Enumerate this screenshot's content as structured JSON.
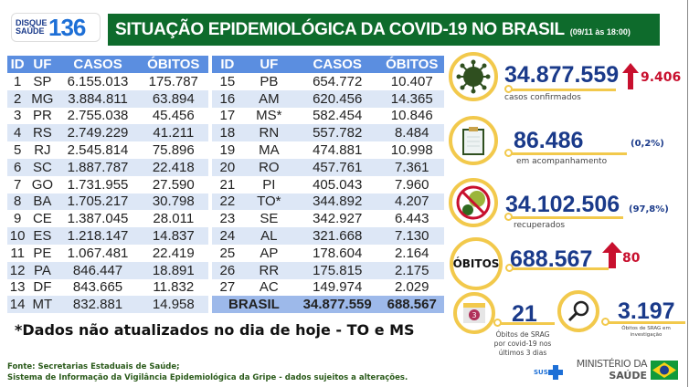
{
  "header": {
    "logo_line1": "DISQUE",
    "logo_line2": "SAÚDE",
    "logo_number": "136",
    "title": "SITUAÇÃO EPIDEMIOLÓGICA DA COVID-19 NO BRASIL",
    "datetime": "(09/11 às 18:00)"
  },
  "table": {
    "columns": [
      "ID",
      "UF",
      "CASOS",
      "ÓBITOS"
    ],
    "left": [
      [
        "1",
        "SP",
        "6.155.013",
        "175.787"
      ],
      [
        "2",
        "MG",
        "3.884.811",
        "63.894"
      ],
      [
        "3",
        "PR",
        "2.755.038",
        "45.456"
      ],
      [
        "4",
        "RS",
        "2.749.229",
        "41.211"
      ],
      [
        "5",
        "RJ",
        "2.545.814",
        "75.896"
      ],
      [
        "6",
        "SC",
        "1.887.787",
        "22.418"
      ],
      [
        "7",
        "GO",
        "1.731.955",
        "27.590"
      ],
      [
        "8",
        "BA",
        "1.705.217",
        "30.798"
      ],
      [
        "9",
        "CE",
        "1.387.045",
        "28.011"
      ],
      [
        "10",
        "ES",
        "1.218.147",
        "14.837"
      ],
      [
        "11",
        "PE",
        "1.067.481",
        "22.419"
      ],
      [
        "12",
        "PA",
        "846.447",
        "18.891"
      ],
      [
        "13",
        "DF",
        "843.665",
        "11.832"
      ],
      [
        "14",
        "MT",
        "832.881",
        "14.958"
      ]
    ],
    "right": [
      [
        "15",
        "PB",
        "654.772",
        "10.407"
      ],
      [
        "16",
        "AM",
        "620.456",
        "14.365"
      ],
      [
        "17",
        "MS*",
        "582.454",
        "10.846"
      ],
      [
        "18",
        "RN",
        "557.782",
        "8.484"
      ],
      [
        "19",
        "MA",
        "474.881",
        "10.998"
      ],
      [
        "20",
        "RO",
        "457.761",
        "7.361"
      ],
      [
        "21",
        "PI",
        "405.043",
        "7.960"
      ],
      [
        "22",
        "TO*",
        "344.892",
        "4.207"
      ],
      [
        "23",
        "SE",
        "342.927",
        "6.443"
      ],
      [
        "24",
        "AL",
        "321.668",
        "7.130"
      ],
      [
        "25",
        "AP",
        "178.604",
        "2.164"
      ],
      [
        "26",
        "RR",
        "175.815",
        "2.175"
      ],
      [
        "27",
        "AC",
        "149.974",
        "2.029"
      ]
    ],
    "total": {
      "label": "BRASIL",
      "casos": "34.877.559",
      "obitos": "688.567"
    }
  },
  "stats": {
    "confirmed": {
      "value": "34.877.559",
      "label": "casos confirmados",
      "increase": "9.406",
      "icon": "virus-icon"
    },
    "monitoring": {
      "value": "86.486",
      "label": "em acompanhamento",
      "pct": "(0,2%)",
      "icon": "clipboard-icon"
    },
    "recovered": {
      "value": "34.102.506",
      "label": "recuperados",
      "pct": "(97,8%)",
      "icon": "no-virus-icon"
    },
    "deaths": {
      "badge": "ÓBITOS",
      "value": "688.567",
      "increase": "80"
    },
    "srag_deaths": {
      "value": "21",
      "label": "Óbitos de SRAG por covid-19 nos últimos 3 dias",
      "calendar_number": "3",
      "icon": "calendar-icon"
    },
    "srag_investigation": {
      "value": "3.197",
      "label": "Óbitos de SRAG em investigação",
      "icon": "magnifier-icon"
    }
  },
  "note": "*Dados não atualizados no dia de hoje - TO e MS",
  "footer": {
    "line1": "Fonte: Secretarias Estaduais de Saúde;",
    "line2": "Sistema de Informação da Vigilância Epidemiológica da Gripe - dados sujeitos a alterações.",
    "sus": "SUS",
    "ministry_line1": "MINISTÉRIO DA",
    "ministry_line2": "SAÚDE"
  },
  "colors": {
    "green": "#0e6b2c",
    "header_blue": "#5b8ee0",
    "navy": "#1a3a8a",
    "red": "#c8102e",
    "yellow": "#f2c94c"
  }
}
